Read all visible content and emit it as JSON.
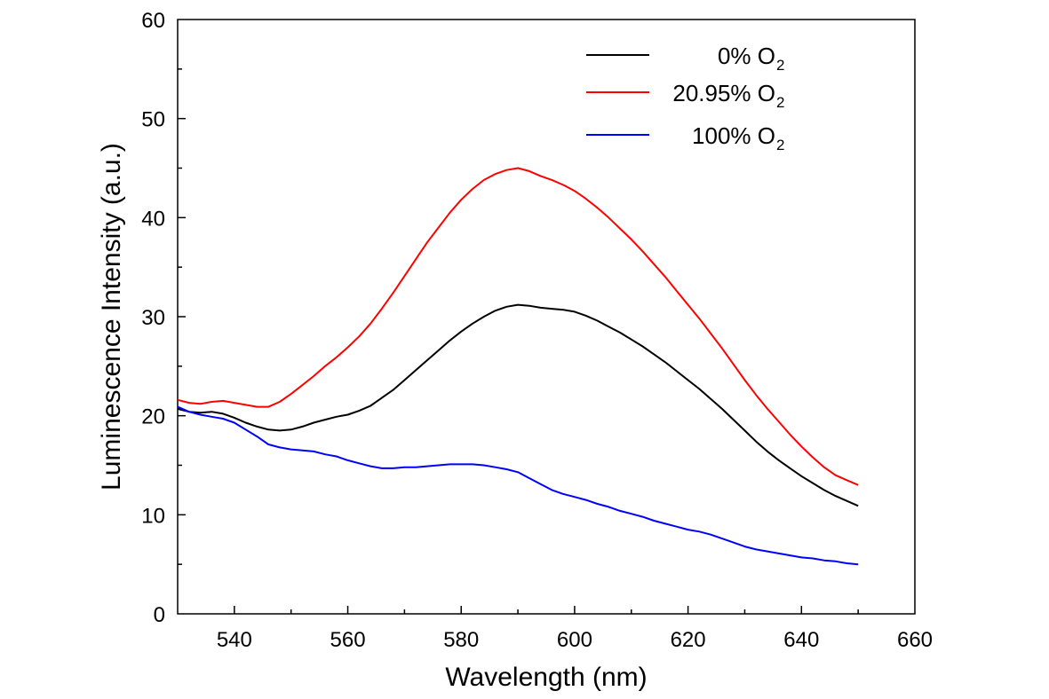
{
  "chart_data": {
    "type": "line",
    "title": "",
    "xlabel": "Wavelength (nm)",
    "ylabel": "Luminescence Intensity (a.u.)",
    "xlim": [
      530,
      660
    ],
    "ylim": [
      0,
      60
    ],
    "xticks": [
      540,
      560,
      580,
      600,
      620,
      640,
      660
    ],
    "yticks": [
      0,
      10,
      20,
      30,
      40,
      50,
      60
    ],
    "grid": false,
    "legend_position": "top-right",
    "series": [
      {
        "name": "0% O",
        "name_sub": "2",
        "color": "#000000",
        "x": [
          530,
          532,
          534,
          536,
          538,
          540,
          542,
          544,
          546,
          548,
          550,
          552,
          554,
          556,
          558,
          560,
          562,
          564,
          566,
          568,
          570,
          572,
          574,
          576,
          578,
          580,
          582,
          584,
          586,
          588,
          590,
          592,
          594,
          596,
          598,
          600,
          602,
          604,
          606,
          608,
          610,
          612,
          614,
          616,
          618,
          620,
          622,
          624,
          626,
          628,
          630,
          632,
          634,
          636,
          638,
          640,
          642,
          644,
          646,
          648,
          650
        ],
        "y": [
          20.7,
          20.4,
          20.3,
          20.4,
          20.2,
          19.8,
          19.3,
          18.9,
          18.6,
          18.5,
          18.6,
          18.9,
          19.3,
          19.6,
          19.9,
          20.1,
          20.5,
          21.0,
          21.8,
          22.6,
          23.6,
          24.6,
          25.6,
          26.6,
          27.6,
          28.5,
          29.3,
          30.0,
          30.6,
          31.0,
          31.2,
          31.1,
          30.9,
          30.8,
          30.7,
          30.5,
          30.1,
          29.6,
          29.0,
          28.4,
          27.7,
          27.0,
          26.2,
          25.4,
          24.5,
          23.6,
          22.7,
          21.7,
          20.7,
          19.6,
          18.5,
          17.4,
          16.4,
          15.5,
          14.7,
          13.9,
          13.2,
          12.5,
          11.9,
          11.4,
          10.9
        ]
      },
      {
        "name": "20.95% O",
        "name_sub": "2",
        "color": "#ff0000",
        "x": [
          530,
          532,
          534,
          536,
          538,
          540,
          542,
          544,
          546,
          548,
          550,
          552,
          554,
          556,
          558,
          560,
          562,
          564,
          566,
          568,
          570,
          572,
          574,
          576,
          578,
          580,
          582,
          584,
          586,
          588,
          590,
          592,
          594,
          596,
          598,
          600,
          602,
          604,
          606,
          608,
          610,
          612,
          614,
          616,
          618,
          620,
          622,
          624,
          626,
          628,
          630,
          632,
          634,
          636,
          638,
          640,
          642,
          644,
          646,
          648,
          650
        ],
        "y": [
          21.6,
          21.3,
          21.2,
          21.4,
          21.5,
          21.3,
          21.1,
          20.9,
          20.9,
          21.4,
          22.2,
          23.1,
          24.0,
          25.0,
          25.9,
          26.9,
          28.0,
          29.3,
          30.8,
          32.4,
          34.1,
          35.8,
          37.5,
          39.0,
          40.5,
          41.8,
          42.9,
          43.8,
          44.4,
          44.8,
          45.0,
          44.7,
          44.2,
          43.8,
          43.3,
          42.7,
          41.9,
          41.0,
          40.0,
          38.9,
          37.8,
          36.6,
          35.3,
          34.0,
          32.6,
          31.2,
          29.8,
          28.3,
          26.8,
          25.2,
          23.6,
          22.1,
          20.7,
          19.4,
          18.1,
          16.9,
          15.8,
          14.8,
          14.0,
          13.5,
          13.0
        ]
      },
      {
        "name": "100% O",
        "name_sub": "2",
        "color": "#0000ff",
        "x": [
          530,
          532,
          534,
          536,
          538,
          540,
          542,
          544,
          546,
          548,
          550,
          552,
          554,
          556,
          558,
          560,
          562,
          564,
          566,
          568,
          570,
          572,
          574,
          576,
          578,
          580,
          582,
          584,
          586,
          588,
          590,
          592,
          594,
          596,
          598,
          600,
          602,
          604,
          606,
          608,
          610,
          612,
          614,
          616,
          618,
          620,
          622,
          624,
          626,
          628,
          630,
          632,
          634,
          636,
          638,
          640,
          642,
          644,
          646,
          648,
          650
        ],
        "y": [
          20.9,
          20.4,
          20.1,
          19.9,
          19.7,
          19.3,
          18.6,
          17.9,
          17.1,
          16.8,
          16.6,
          16.5,
          16.4,
          16.1,
          15.9,
          15.5,
          15.2,
          14.9,
          14.7,
          14.7,
          14.8,
          14.8,
          14.9,
          15.0,
          15.1,
          15.1,
          15.1,
          15.0,
          14.8,
          14.6,
          14.3,
          13.7,
          13.1,
          12.5,
          12.1,
          11.8,
          11.5,
          11.1,
          10.8,
          10.4,
          10.1,
          9.8,
          9.4,
          9.1,
          8.8,
          8.5,
          8.3,
          8.0,
          7.6,
          7.2,
          6.8,
          6.5,
          6.3,
          6.1,
          5.9,
          5.7,
          5.6,
          5.4,
          5.3,
          5.1,
          5.0
        ]
      }
    ]
  }
}
